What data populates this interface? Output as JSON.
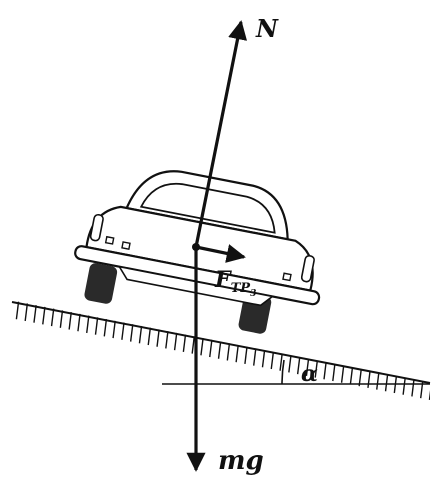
{
  "labels": {
    "normal_force": "N",
    "friction_main": "F",
    "friction_sub": "TP",
    "friction_sub2": "3",
    "weight": "mg",
    "angle": "α"
  },
  "colors": {
    "ink": "#111111",
    "car_body": "#ffffff",
    "tire": "#2a2a2a"
  },
  "icons": {
    "normal_arrow": "arrow-up",
    "weight_arrow": "arrow-down",
    "friction_arrow": "arrow-right",
    "incline_hatching": "ground-hatch",
    "car": "car-rear-view"
  }
}
